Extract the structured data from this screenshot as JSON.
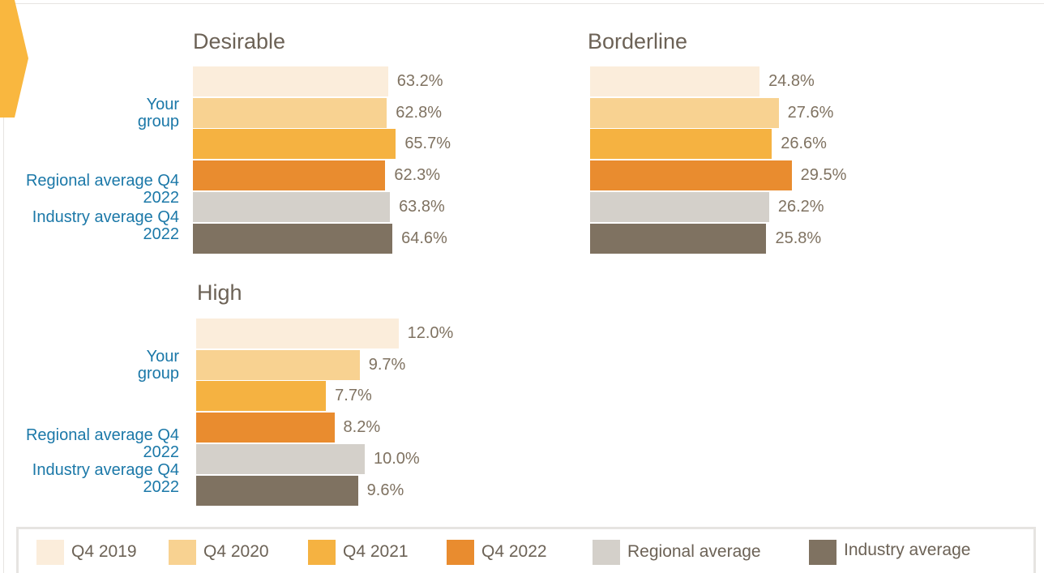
{
  "chart_data": [
    {
      "type": "bar",
      "title": "Desirable",
      "group_labels": [
        "Your group",
        "Regional average Q4 2022",
        "Industry average Q4 2022"
      ],
      "series": [
        {
          "name": "Q4 2019",
          "color": "#fbeddb",
          "values": [
            63.2
          ],
          "value_labels": [
            "63.2%"
          ]
        },
        {
          "name": "Q4 2020",
          "color": "#f8d291",
          "values": [
            62.8
          ],
          "value_labels": [
            "62.8%"
          ]
        },
        {
          "name": "Q4 2021",
          "color": "#f5b241",
          "values": [
            65.7
          ],
          "value_labels": [
            "65.7%"
          ]
        },
        {
          "name": "Q4 2022",
          "color": "#e98c2f",
          "values": [
            62.3
          ],
          "value_labels": [
            "62.3%"
          ]
        },
        {
          "name": "Regional average",
          "color": "#d4d0ca",
          "values": [
            63.8
          ],
          "value_labels": [
            "63.8%"
          ]
        },
        {
          "name": "Industry average",
          "color": "#7f7261",
          "values": [
            64.6
          ],
          "value_labels": [
            "64.6%"
          ]
        }
      ]
    },
    {
      "type": "bar",
      "title": "Borderline",
      "series": [
        {
          "name": "Q4 2019",
          "color": "#fbeddb",
          "values": [
            24.8
          ],
          "value_labels": [
            "24.8%"
          ]
        },
        {
          "name": "Q4 2020",
          "color": "#f8d291",
          "values": [
            27.6
          ],
          "value_labels": [
            "27.6%"
          ]
        },
        {
          "name": "Q4 2021",
          "color": "#f5b241",
          "values": [
            26.6
          ],
          "value_labels": [
            "26.6%"
          ]
        },
        {
          "name": "Q4 2022",
          "color": "#e98c2f",
          "values": [
            29.5
          ],
          "value_labels": [
            "29.5%"
          ]
        },
        {
          "name": "Regional average",
          "color": "#d4d0ca",
          "values": [
            26.2
          ],
          "value_labels": [
            "26.2%"
          ]
        },
        {
          "name": "Industry average",
          "color": "#7f7261",
          "values": [
            25.8
          ],
          "value_labels": [
            "25.8%"
          ]
        }
      ]
    },
    {
      "type": "bar",
      "title": "High",
      "group_labels": [
        "Your group",
        "Regional average Q4 2022",
        "Industry average Q4 2022"
      ],
      "series": [
        {
          "name": "Q4 2019",
          "color": "#fbeddb",
          "values": [
            12.0
          ],
          "value_labels": [
            "12.0%"
          ]
        },
        {
          "name": "Q4 2020",
          "color": "#f8d291",
          "values": [
            9.7
          ],
          "value_labels": [
            "9.7%"
          ]
        },
        {
          "name": "Q4 2021",
          "color": "#f5b241",
          "values": [
            7.7
          ],
          "value_labels": [
            "7.7%"
          ]
        },
        {
          "name": "Q4 2022",
          "color": "#e98c2f",
          "values": [
            8.2
          ],
          "value_labels": [
            "8.2%"
          ]
        },
        {
          "name": "Regional average",
          "color": "#d4d0ca",
          "values": [
            10.0
          ],
          "value_labels": [
            "10.0%"
          ]
        },
        {
          "name": "Industry average",
          "color": "#7f7261",
          "values": [
            9.6
          ],
          "value_labels": [
            "9.6%"
          ]
        }
      ]
    }
  ]
}
